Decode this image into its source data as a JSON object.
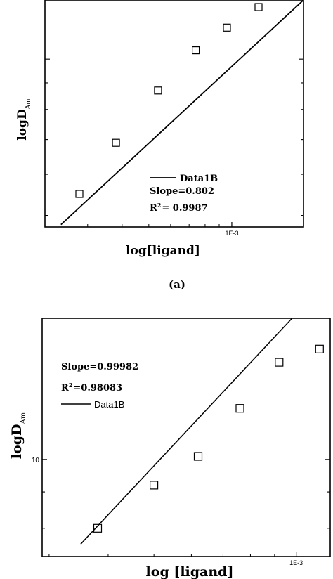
{
  "caption_a": "(a)",
  "chart_data": [
    {
      "type": "scatter",
      "title": "",
      "xlabel": "log[ligand]",
      "ylabel": "logD",
      "ylabel_sub": "Am",
      "x_scale": "log",
      "y_scale": "log",
      "xlim": [
        0.00021,
        0.00182
      ],
      "ylim": [
        4.75,
        13.0
      ],
      "x_ticks": [
        {
          "value": 0.001,
          "label": "1E-3"
        }
      ],
      "y_ticks": [],
      "legend": {
        "placement": "bottom-right",
        "entry": "Data1B",
        "slope_text": "Slope=0.802",
        "r2_main": "R",
        "r2_sup": "2",
        "r2_value": "= 0.9987"
      },
      "points": [
        {
          "x": 0.00028,
          "y": 5.5
        },
        {
          "x": 0.00038,
          "y": 6.9
        },
        {
          "x": 0.00054,
          "y": 8.7
        },
        {
          "x": 0.00074,
          "y": 10.4
        },
        {
          "x": 0.00096,
          "y": 11.5
        },
        {
          "x": 0.00125,
          "y": 12.6
        }
      ],
      "fit": {
        "x": [
          0.00024,
          0.00182
        ],
        "y": [
          4.8,
          13.0
        ]
      },
      "grid": false
    },
    {
      "type": "scatter",
      "title": "",
      "xlabel": "log [ligand]",
      "ylabel": "logD",
      "ylabel_sub": "Am",
      "x_scale": "log",
      "y_scale": "log",
      "xlim": [
        0.00029,
        0.00118
      ],
      "ylim": [
        7.3,
        15.8
      ],
      "x_ticks": [
        {
          "value": 0.001,
          "label": "1E-3"
        }
      ],
      "y_ticks": [
        {
          "value": 10,
          "label": "10"
        }
      ],
      "legend": {
        "placement": "top-left",
        "entry": "Data1B",
        "slope_text": "Slope=0.99982",
        "r2_main": "R",
        "r2_sup": "2",
        "r2_value": "=0.98083"
      },
      "points": [
        {
          "x": 0.00038,
          "y": 8.0
        },
        {
          "x": 0.0005,
          "y": 9.2
        },
        {
          "x": 0.00062,
          "y": 10.1
        },
        {
          "x": 0.00076,
          "y": 11.8
        },
        {
          "x": 0.00092,
          "y": 13.7
        },
        {
          "x": 0.00112,
          "y": 14.3
        }
      ],
      "fit": {
        "x": [
          0.00035,
          0.00098
        ],
        "y": [
          7.6,
          15.8
        ]
      },
      "grid": false
    }
  ]
}
